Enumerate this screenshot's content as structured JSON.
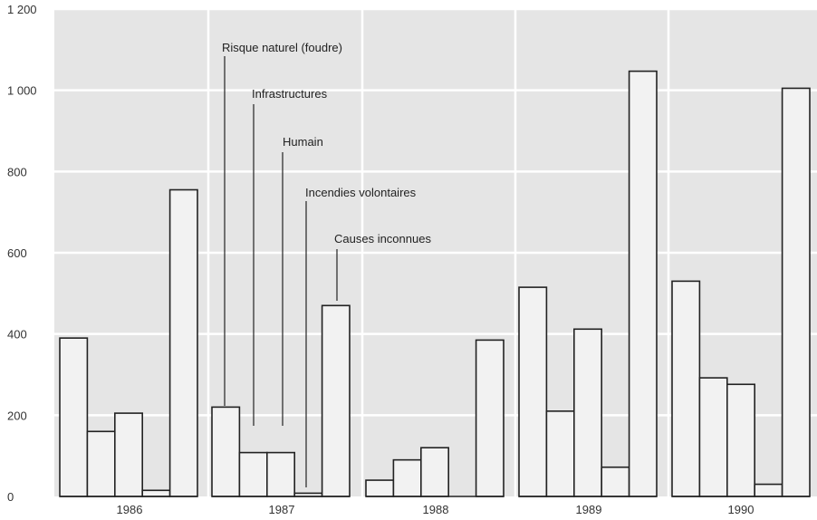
{
  "chart_data": {
    "type": "bar",
    "categories": [
      "1986",
      "1987",
      "1988",
      "1989",
      "1990"
    ],
    "series": [
      {
        "name": "Risque naturel (foudre)",
        "values": [
          390,
          220,
          40,
          515,
          530
        ]
      },
      {
        "name": "Infrastructures",
        "values": [
          160,
          108,
          90,
          210,
          292
        ]
      },
      {
        "name": "Humain",
        "values": [
          205,
          108,
          120,
          412,
          276
        ]
      },
      {
        "name": "Incendies volontaires",
        "values": [
          15,
          8,
          0,
          72,
          30
        ]
      },
      {
        "name": "Causes inconnues",
        "values": [
          755,
          470,
          385,
          1047,
          1005
        ]
      }
    ],
    "yticks": [
      "0",
      "200",
      "400",
      "600",
      "800",
      "1 000",
      "1 200"
    ],
    "ylim": [
      0,
      1200
    ],
    "title": "",
    "xlabel": "",
    "ylabel": "",
    "grid": true,
    "legend": "annotations on 1987 group"
  }
}
